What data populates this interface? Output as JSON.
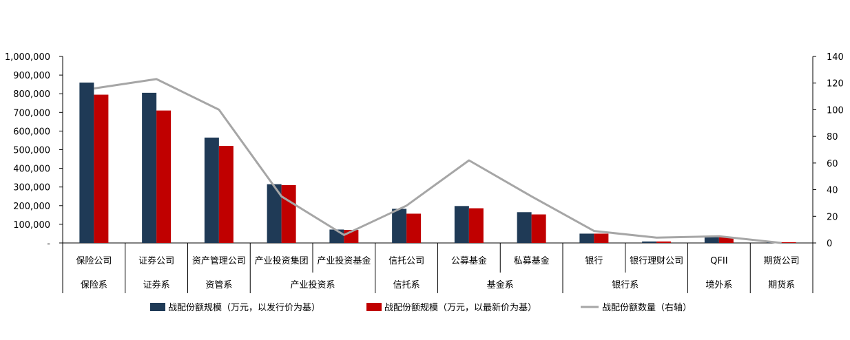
{
  "chart_data": {
    "type": "bar",
    "categories": [
      "保险公司",
      "证券公司",
      "资产管理公司",
      "产业投资集团",
      "产业投资基金",
      "信托公司",
      "公募基金",
      "私募基金",
      "银行",
      "银行理财公司",
      "QFII",
      "期货公司"
    ],
    "groups": [
      {
        "label": "保险系",
        "categories": [
          "保险公司"
        ]
      },
      {
        "label": "证券系",
        "categories": [
          "证券公司"
        ]
      },
      {
        "label": "资管系",
        "categories": [
          "资产管理公司"
        ]
      },
      {
        "label": "产业投资系",
        "categories": [
          "产业投资集团",
          "产业投资基金"
        ]
      },
      {
        "label": "信托系",
        "categories": [
          "信托公司"
        ]
      },
      {
        "label": "基金系",
        "categories": [
          "公募基金",
          "私募基金"
        ]
      },
      {
        "label": "银行系",
        "categories": [
          "银行",
          "银行理财公司"
        ]
      },
      {
        "label": "境外系",
        "categories": [
          "QFII"
        ]
      },
      {
        "label": "期货系",
        "categories": [
          "期货公司"
        ]
      }
    ],
    "series": [
      {
        "name": "战配份额规模（万元，以发行价为基）",
        "type": "bar",
        "axis": "left",
        "color": "#1f3a56",
        "values": [
          860000,
          805000,
          565000,
          315000,
          72000,
          183000,
          198000,
          165000,
          50000,
          8000,
          33000,
          4000
        ]
      },
      {
        "name": "战配份额规模（万元，以最新价为基）",
        "type": "bar",
        "axis": "left",
        "color": "#c00000",
        "values": [
          795000,
          710000,
          520000,
          310000,
          70000,
          157000,
          186000,
          153000,
          50000,
          8000,
          33000,
          4000
        ]
      },
      {
        "name": "战配份额数量（右轴）",
        "type": "line",
        "axis": "right",
        "color": "#a6a6a6",
        "values": [
          116,
          123,
          100,
          35,
          6,
          28,
          62,
          35,
          9,
          4,
          5,
          0
        ]
      }
    ],
    "ylim": [
      0,
      1000000
    ],
    "y2lim": [
      0,
      140
    ],
    "yticks": [
      "-",
      "100,000",
      "200,000",
      "300,000",
      "400,000",
      "500,000",
      "600,000",
      "700,000",
      "800,000",
      "900,000",
      "1,000,000"
    ],
    "y2ticks": [
      "0",
      "20",
      "40",
      "60",
      "80",
      "100",
      "120",
      "140"
    ],
    "legend_position": "bottom",
    "grid": false
  }
}
